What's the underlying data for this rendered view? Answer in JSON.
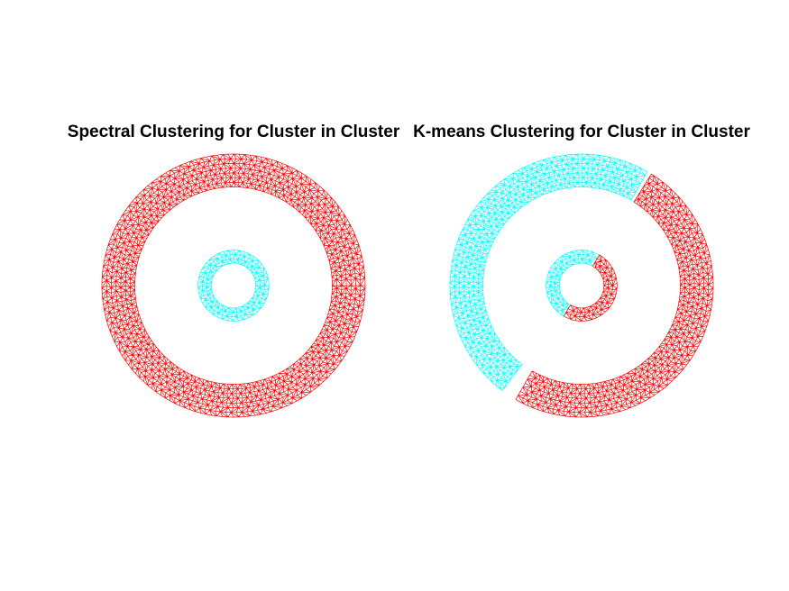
{
  "chart_data": [
    {
      "type": "scatter",
      "title": "Spectral Clustering for Cluster in Cluster",
      "xlabel": "",
      "ylabel": "",
      "axes_visible": false,
      "render": "triangulated mesh (edges drawn)",
      "xlim": [
        -1.0,
        1.0
      ],
      "ylim": [
        -1.0,
        1.0
      ],
      "grid": false,
      "legend": "none",
      "series": [
        {
          "shape": "ring",
          "center": [
            0,
            0
          ],
          "inner_radius": 0.75,
          "outer_radius": 1.0,
          "color": "#ff0000",
          "arcs": [
            {
              "from_deg": 0,
              "to_deg": 360
            }
          ]
        },
        {
          "shape": "ring",
          "center": [
            0,
            0
          ],
          "inner_radius": 0.17,
          "outer_radius": 0.27,
          "color": "#00ffff",
          "arcs": [
            {
              "from_deg": 0,
              "to_deg": 360
            }
          ]
        }
      ]
    },
    {
      "type": "scatter",
      "title": "K-means Clustering for Cluster in Cluster",
      "xlabel": "",
      "ylabel": "",
      "axes_visible": false,
      "render": "triangulated mesh (edges drawn)",
      "xlim": [
        -1.0,
        1.0
      ],
      "ylim": [
        -1.0,
        1.0
      ],
      "grid": false,
      "legend": "none",
      "series": [
        {
          "shape": "ring",
          "center": [
            0,
            0
          ],
          "inner_radius": 0.75,
          "outer_radius": 1.0,
          "color": "#00ffff",
          "arcs": [
            {
              "from_deg": 60,
              "to_deg": 233
            }
          ]
        },
        {
          "shape": "ring",
          "center": [
            0,
            0
          ],
          "inner_radius": 0.75,
          "outer_radius": 1.0,
          "color": "#ff0000",
          "arcs": [
            {
              "from_deg": 240,
              "to_deg": 418
            }
          ]
        },
        {
          "shape": "ring",
          "center": [
            0,
            0
          ],
          "inner_radius": 0.17,
          "outer_radius": 0.27,
          "color": "#00ffff",
          "arcs": [
            {
              "from_deg": 60,
              "to_deg": 240
            }
          ]
        },
        {
          "shape": "ring",
          "center": [
            0,
            0
          ],
          "inner_radius": 0.17,
          "outer_radius": 0.27,
          "color": "#ff0000",
          "arcs": [
            {
              "from_deg": 240,
              "to_deg": 420
            }
          ]
        }
      ]
    }
  ]
}
